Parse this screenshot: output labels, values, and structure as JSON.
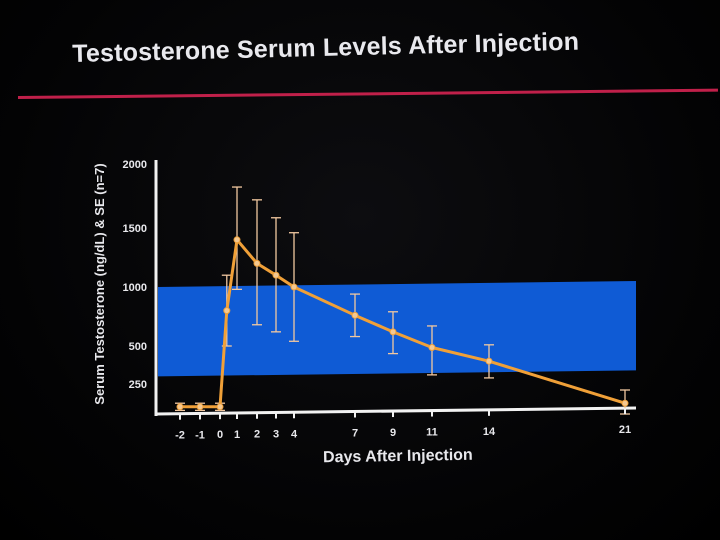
{
  "slide": {
    "title": "Testosterone Serum Levels After Injection"
  },
  "chart_data": {
    "type": "line",
    "title": "Testosterone Serum Levels After Injection",
    "xlabel": "Days After Injection",
    "ylabel": "Serum Testosterone (ng/dL) & SE (n=7)",
    "ylim": [
      0,
      2000
    ],
    "y_ticks": [
      250,
      500,
      1000,
      1500,
      2000
    ],
    "x_tick_labels": [
      "-2",
      "-1",
      "0",
      "1",
      "2",
      "3",
      "4",
      "7",
      "9",
      "11",
      "14",
      "21"
    ],
    "normal_range": [
      300,
      1000
    ],
    "colors": {
      "line": "#f0a038",
      "error_bar": "#f2c8a0",
      "band": "#1060e0",
      "axis": "#f2f2f2"
    },
    "series": [
      {
        "x": [
          -2,
          -1,
          0,
          0.4,
          1,
          2,
          3,
          4,
          7,
          9,
          11,
          14,
          21
        ],
        "values": [
          60,
          60,
          60,
          800,
          1400,
          1200,
          1100,
          1000,
          760,
          620,
          490,
          400,
          90
        ],
        "error": [
          30,
          30,
          30,
          300,
          420,
          520,
          480,
          460,
          180,
          170,
          180,
          110,
          110
        ]
      }
    ]
  }
}
